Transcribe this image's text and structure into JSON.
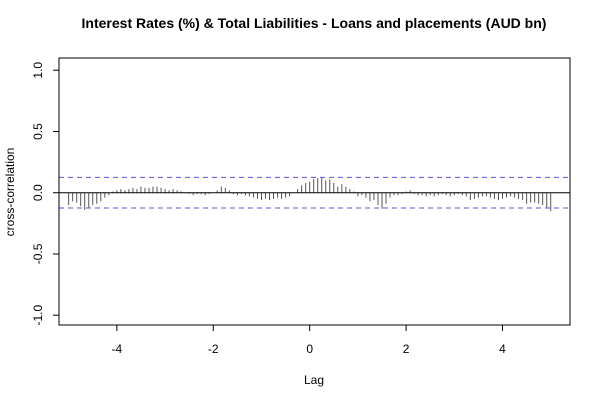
{
  "chart_data": {
    "type": "bar",
    "title": "Interest Rates (%) & Total Liabilities - Loans and placements (AUD bn)",
    "xlabel": "Lag",
    "ylabel": "cross-correlation",
    "xlim": [
      -5.2,
      5.4
    ],
    "ylim": [
      -1.08,
      1.1
    ],
    "x_ticks": [
      -4,
      -2,
      0,
      2,
      4
    ],
    "y_ticks": [
      -1.0,
      -0.5,
      0.0,
      0.5,
      1.0
    ],
    "x_tick_labels": [
      "-4",
      "-2",
      "0",
      "2",
      "4"
    ],
    "y_tick_labels": [
      "-1.0",
      "-0.5",
      "0.0",
      "0.5",
      "1.0"
    ],
    "confidence_limit": 0.125,
    "colors": {
      "bars": "#555555",
      "confidence": "#5555dd",
      "zero": "#000000"
    },
    "lags": [
      -5.0,
      -4.917,
      -4.833,
      -4.75,
      -4.667,
      -4.583,
      -4.5,
      -4.417,
      -4.333,
      -4.25,
      -4.167,
      -4.083,
      -4.0,
      -3.917,
      -3.833,
      -3.75,
      -3.667,
      -3.583,
      -3.5,
      -3.417,
      -3.333,
      -3.25,
      -3.167,
      -3.083,
      -3.0,
      -2.917,
      -2.833,
      -2.75,
      -2.667,
      -2.583,
      -2.5,
      -2.417,
      -2.333,
      -2.25,
      -2.167,
      -2.083,
      -2.0,
      -1.917,
      -1.833,
      -1.75,
      -1.667,
      -1.583,
      -1.5,
      -1.417,
      -1.333,
      -1.25,
      -1.167,
      -1.083,
      -1.0,
      -0.917,
      -0.833,
      -0.75,
      -0.667,
      -0.583,
      -0.5,
      -0.417,
      -0.333,
      -0.25,
      -0.167,
      -0.083,
      0.0,
      0.083,
      0.167,
      0.25,
      0.333,
      0.417,
      0.5,
      0.583,
      0.667,
      0.75,
      0.833,
      0.917,
      1.0,
      1.083,
      1.167,
      1.25,
      1.333,
      1.417,
      1.5,
      1.583,
      1.667,
      1.75,
      1.833,
      1.917,
      2.0,
      2.083,
      2.167,
      2.25,
      2.333,
      2.417,
      2.5,
      2.583,
      2.667,
      2.75,
      2.833,
      2.917,
      3.0,
      3.083,
      3.167,
      3.25,
      3.333,
      3.417,
      3.5,
      3.583,
      3.667,
      3.75,
      3.833,
      3.917,
      4.0,
      4.083,
      4.167,
      4.25,
      4.333,
      4.417,
      4.5,
      4.583,
      4.667,
      4.75,
      4.833,
      4.917,
      5.0
    ],
    "values": [
      -0.1,
      -0.07,
      -0.08,
      -0.11,
      -0.14,
      -0.12,
      -0.1,
      -0.09,
      -0.07,
      -0.04,
      -0.02,
      0.01,
      0.02,
      0.03,
      0.02,
      0.03,
      0.04,
      0.03,
      0.05,
      0.04,
      0.04,
      0.05,
      0.05,
      0.04,
      0.03,
      0.02,
      0.03,
      0.02,
      0.01,
      0.0,
      -0.01,
      -0.02,
      -0.01,
      -0.01,
      -0.02,
      -0.01,
      0.0,
      0.02,
      0.05,
      0.04,
      0.02,
      -0.01,
      -0.02,
      -0.01,
      -0.02,
      -0.03,
      -0.04,
      -0.05,
      -0.06,
      -0.05,
      -0.06,
      -0.05,
      -0.04,
      -0.05,
      -0.04,
      -0.03,
      0.0,
      0.03,
      0.06,
      0.08,
      0.09,
      0.11,
      0.12,
      0.12,
      0.1,
      0.11,
      0.08,
      0.05,
      0.07,
      0.05,
      0.03,
      0.01,
      -0.03,
      -0.02,
      -0.04,
      -0.07,
      -0.06,
      -0.1,
      -0.13,
      -0.09,
      -0.04,
      -0.02,
      -0.02,
      -0.01,
      0.01,
      0.02,
      -0.01,
      -0.02,
      -0.02,
      -0.03,
      -0.02,
      -0.03,
      -0.02,
      -0.01,
      -0.02,
      -0.03,
      -0.02,
      -0.01,
      -0.02,
      -0.03,
      -0.06,
      -0.05,
      -0.04,
      -0.03,
      -0.03,
      -0.04,
      -0.05,
      -0.06,
      -0.05,
      -0.04,
      -0.03,
      -0.04,
      -0.05,
      -0.06,
      -0.09,
      -0.08,
      -0.08,
      -0.09,
      -0.1,
      -0.12,
      -0.15
    ]
  }
}
